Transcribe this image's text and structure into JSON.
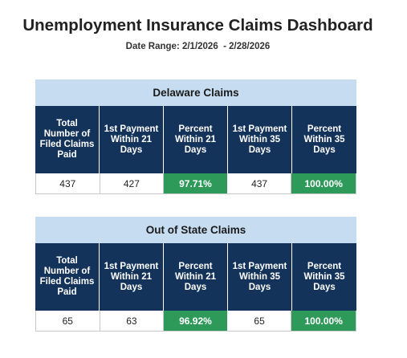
{
  "dashboard": {
    "title": "Unemployment Insurance Claims Dashboard",
    "date_range": "Date Range: 2/1/2026  - 2/28/2026"
  },
  "colors": {
    "panel_header_bg": "#c6dcf1",
    "column_header_bg": "#14335a",
    "good_bg": "#2e9a5a"
  },
  "headers": [
    "Total Number of Filed Claims Paid",
    "1st Payment Within 21 Days",
    "Percent Within 21 Days",
    "1st Payment Within 35 Days",
    "Percent Within 35 Days"
  ],
  "panels": [
    {
      "title": "Delaware Claims",
      "values": [
        "437",
        "427",
        "97.71%",
        "437",
        "100.00%"
      ]
    },
    {
      "title": "Out of State Claims",
      "values": [
        "65",
        "63",
        "96.92%",
        "65",
        "100.00%"
      ]
    }
  ]
}
